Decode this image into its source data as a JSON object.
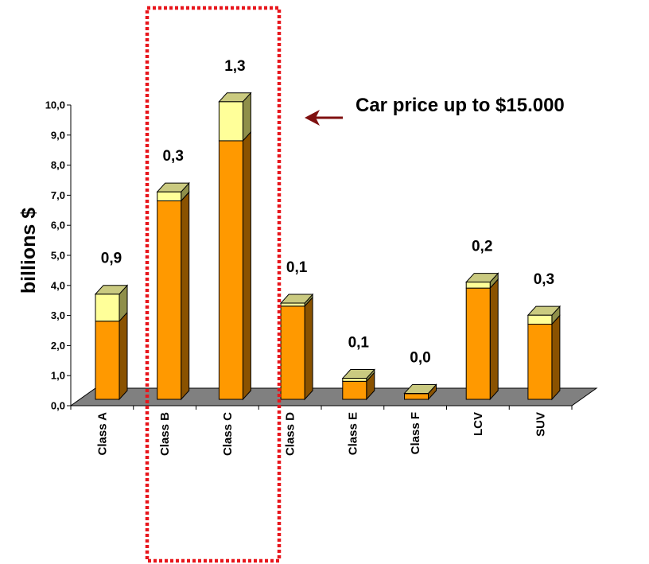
{
  "chart_data": {
    "type": "bar",
    "stacked": true,
    "three_d": true,
    "categories": [
      "Class A",
      "Class B",
      "Class C",
      "Class D",
      "Class E",
      "Class F",
      "LCV",
      "SUV"
    ],
    "series": [
      {
        "values": [
          2.6,
          6.6,
          8.6,
          3.1,
          0.6,
          0.2,
          3.7,
          2.5
        ],
        "color": "#FF9900",
        "dark_color": "#8A5200"
      },
      {
        "values": [
          0.9,
          0.3,
          1.3,
          0.1,
          0.1,
          0.0,
          0.2,
          0.3
        ],
        "color": "#FFFF99",
        "dark_color": "#8F8F4A"
      }
    ],
    "data_labels": [
      "0,9",
      "0,3",
      "1,3",
      "0,1",
      "0,1",
      "0,0",
      "0,2",
      "0,3"
    ],
    "ylabel": "billions $",
    "xlabel": "",
    "ylim": [
      0,
      10
    ],
    "yticks": [
      "0,0",
      "1,0",
      "2,0",
      "3,0",
      "4,0",
      "5,0",
      "6,0",
      "7,0",
      "8,0",
      "9,0",
      "10,0"
    ],
    "grid": false,
    "legend": "none",
    "floor_color": "#808080",
    "annotation": {
      "text": "Car price up to $15.000",
      "arrow_color": "#7F1010",
      "highlight_color": "#E8161C",
      "highlight_categories": [
        "Class B",
        "Class C"
      ]
    }
  }
}
